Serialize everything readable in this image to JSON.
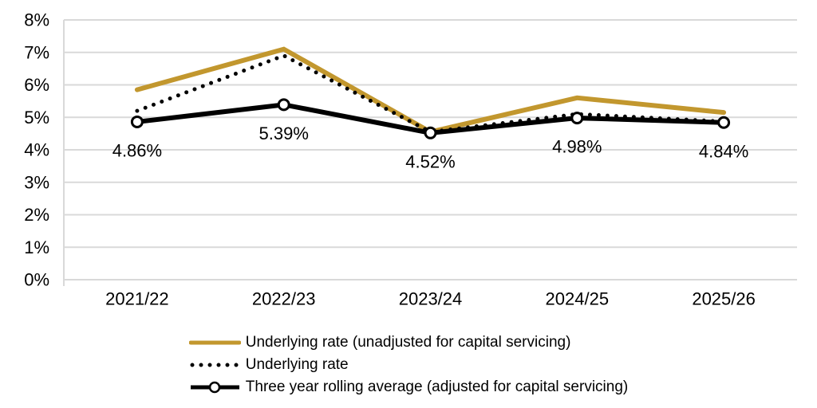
{
  "chart_data": {
    "type": "line",
    "categories": [
      "2021/22",
      "2022/23",
      "2023/24",
      "2024/25",
      "2025/26"
    ],
    "series": [
      {
        "name": "Underlying rate (unadjusted for capital servicing)",
        "color": "#C2972E",
        "line_style": "solid",
        "marker": "none",
        "values": [
          5.85,
          7.1,
          4.55,
          5.6,
          5.15
        ]
      },
      {
        "name": "Underlying rate",
        "color": "#000000",
        "line_style": "dotted",
        "marker": "none",
        "values": [
          5.2,
          6.9,
          4.55,
          5.1,
          4.87
        ]
      },
      {
        "name": "Three year rolling average (adjusted for capital servicing)",
        "color": "#000000",
        "line_style": "solid",
        "marker": "circle",
        "values": [
          4.86,
          5.39,
          4.52,
          4.98,
          4.84
        ],
        "data_labels": [
          "4.86%",
          "5.39%",
          "4.52%",
          "4.98%",
          "4.84%"
        ]
      }
    ],
    "y_ticks": [
      "0%",
      "1%",
      "2%",
      "3%",
      "4%",
      "5%",
      "6%",
      "7%",
      "8%"
    ],
    "ylim": [
      0,
      8
    ],
    "grid": true,
    "legend_position": "bottom",
    "gridline_color": "#D9D9D9",
    "text_color": "#000000",
    "background": "#FFFFFF"
  }
}
